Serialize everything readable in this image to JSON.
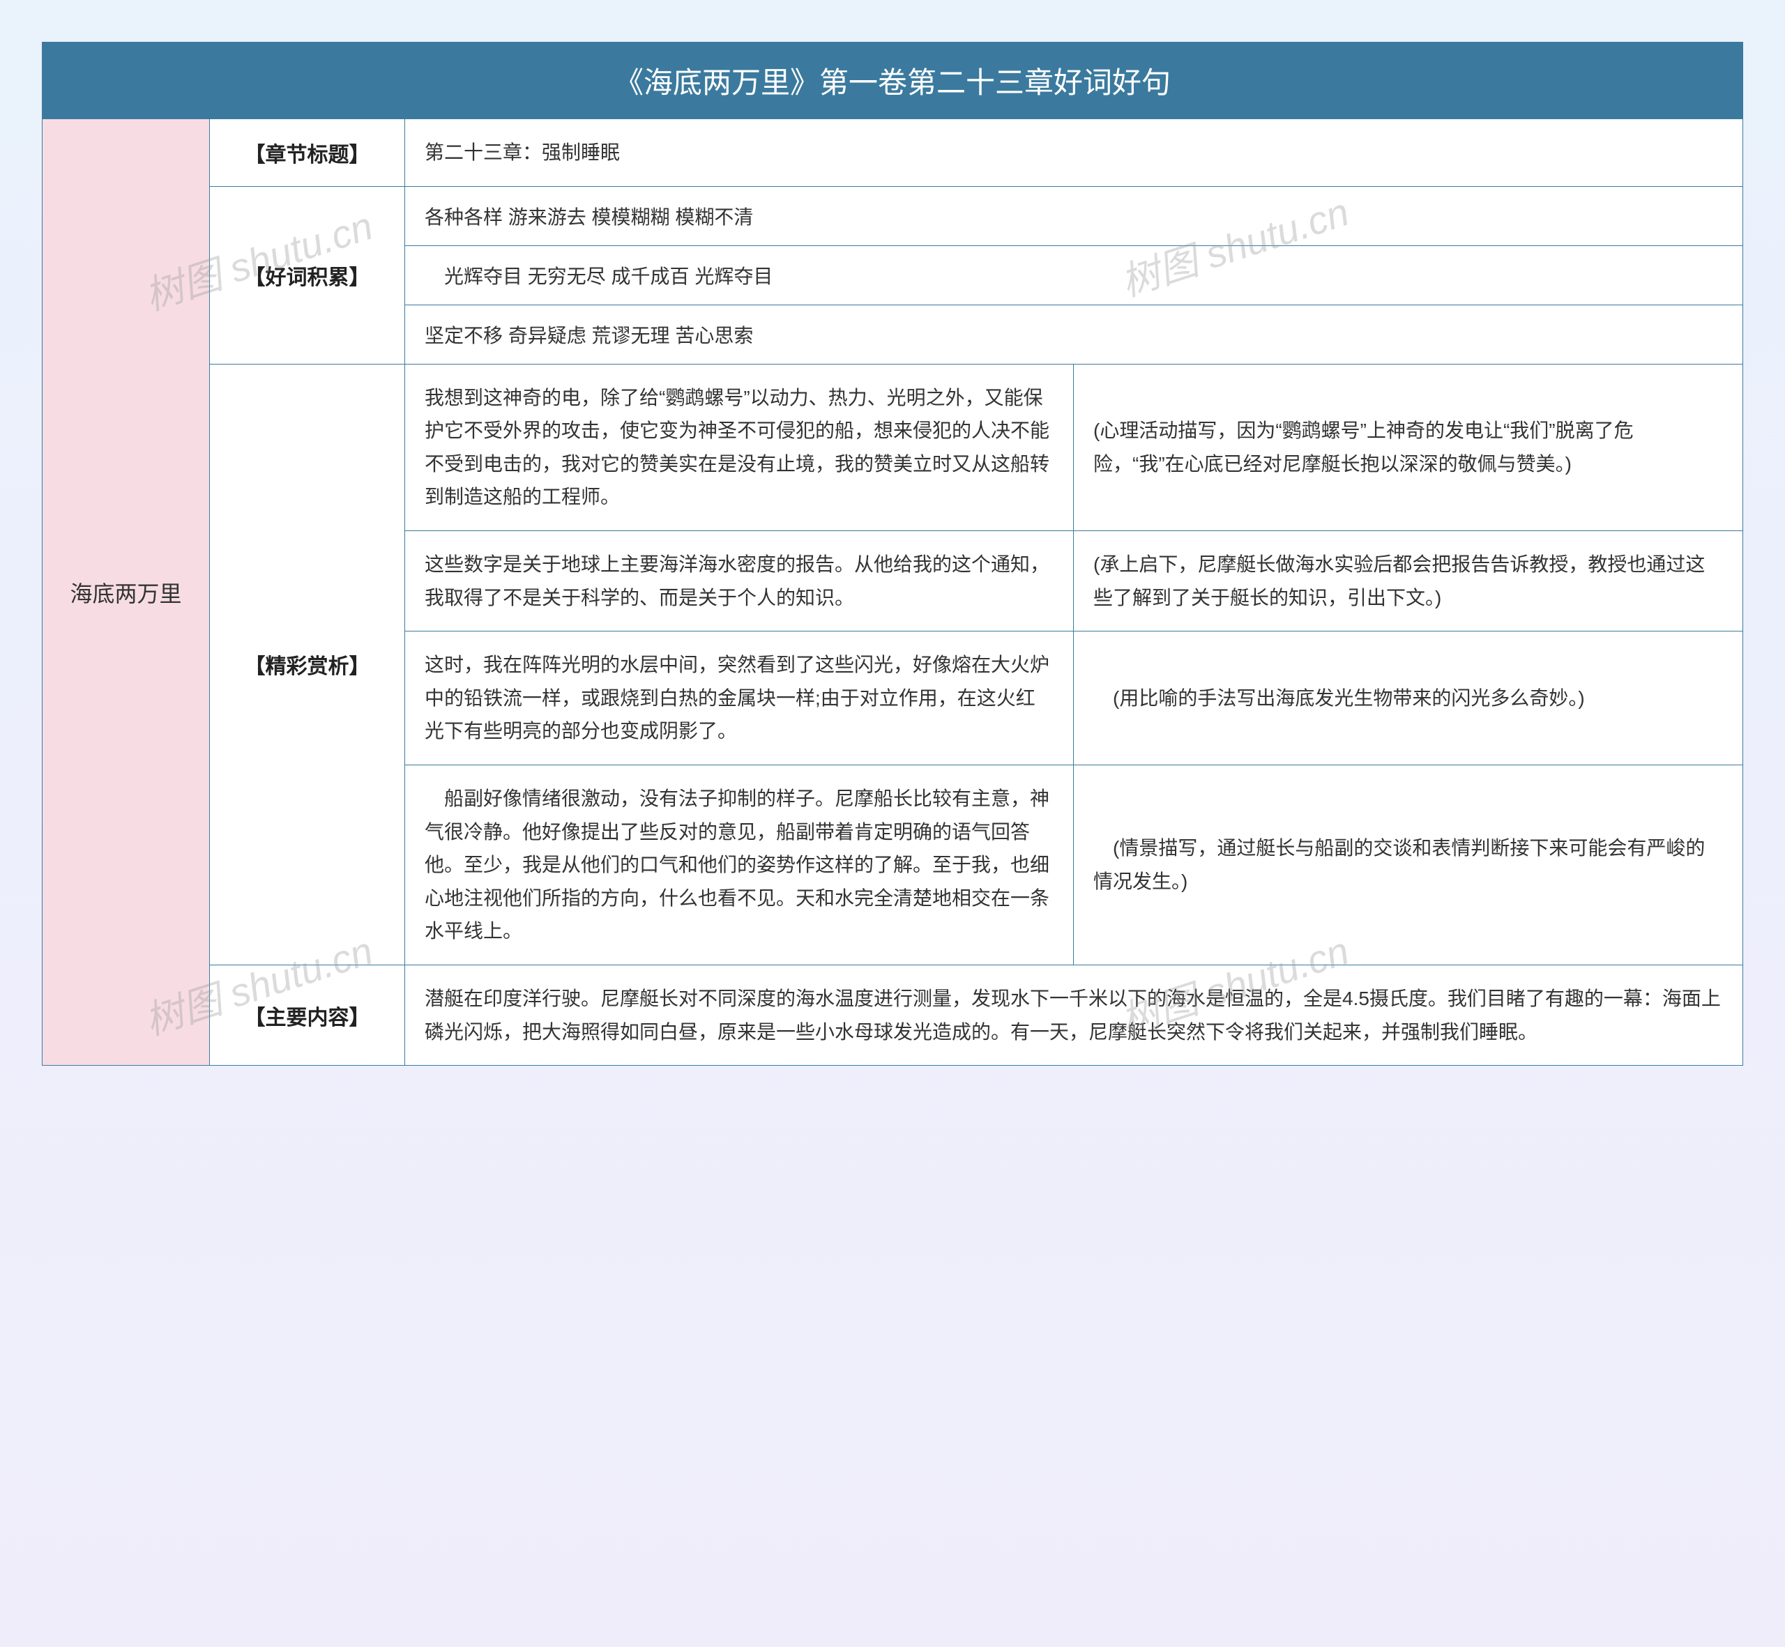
{
  "title": "《海底两万里》第一卷第二十三章好词好句",
  "spine": "海底两万里",
  "sections": {
    "chapter_label": "【章节标题】",
    "chapter_value": "第二十三章：强制睡眠",
    "vocab_label": "【好词积累】",
    "vocab": [
      "各种各样 游来游去 模模糊糊 模糊不清",
      "　光辉夺目 无穷无尽 成千成百 光辉夺目",
      "坚定不移 奇异疑虑 荒谬无理 苦心思索"
    ],
    "analysis_label": "【精彩赏析】",
    "analysis": [
      {
        "quote": "我想到这神奇的电，除了给“鹦鹉螺号”以动力、热力、光明之外，又能保护它不受外界的攻击，使它变为神圣不可侵犯的船，想来侵犯的人决不能不受到电击的，我对它的赞美实在是没有止境，我的赞美立时又从这船转到制造这船的工程师。",
        "note": "(心理活动描写，因为“鹦鹉螺号”上神奇的发电让“我们”脱离了危险，“我”在心底已经对尼摩艇长抱以深深的敬佩与赞美。)"
      },
      {
        "quote": "这些数字是关于地球上主要海洋海水密度的报告。从他给我的这个通知，我取得了不是关于科学的、而是关于个人的知识。",
        "note": "(承上启下，尼摩艇长做海水实验后都会把报告告诉教授，教授也通过这些了解到了关于艇长的知识，引出下文。)"
      },
      {
        "quote": "这时，我在阵阵光明的水层中间，突然看到了这些闪光，好像熔在大火炉中的铅铁流一样，或跟烧到白热的金属块一样;由于对立作用，在这火红光下有些明亮的部分也变成阴影了。",
        "note": "　(用比喻的手法写出海底发光生物带来的闪光多么奇妙。)"
      },
      {
        "quote": "　船副好像情绪很激动，没有法子抑制的样子。尼摩船长比较有主意，神气很冷静。他好像提出了些反对的意见，船副带着肯定明确的语气回答他。至少，我是从他们的口气和他们的姿势作这样的了解。至于我，也细心地注视他们所指的方向，什么也看不见。天和水完全清楚地相交在一条水平线上。",
        "note": "　(情景描写，通过艇长与船副的交谈和表情判断接下来可能会有严峻的情况发生。)"
      }
    ],
    "summary_label": "【主要内容】",
    "summary_value": "潜艇在印度洋行驶。尼摩艇长对不同深度的海水温度进行测量，发现水下一千米以下的海水是恒温的，全是4.5摄氏度。我们目睹了有趣的一幕：海面上磷光闪烁，把大海照得如同白昼，原来是一些小水母球发光造成的。有一天，尼摩艇长突然下令将我们关起来，并强制我们睡眠。"
  },
  "watermark": "树图 shutu.cn",
  "colors": {
    "header_bg": "#3b7a9e",
    "spine_bg": "#f7dde3",
    "border": "#3b7a9e",
    "text": "#333333",
    "bg_top": "#eaf2fc",
    "bg_bottom": "#f0edfb"
  }
}
